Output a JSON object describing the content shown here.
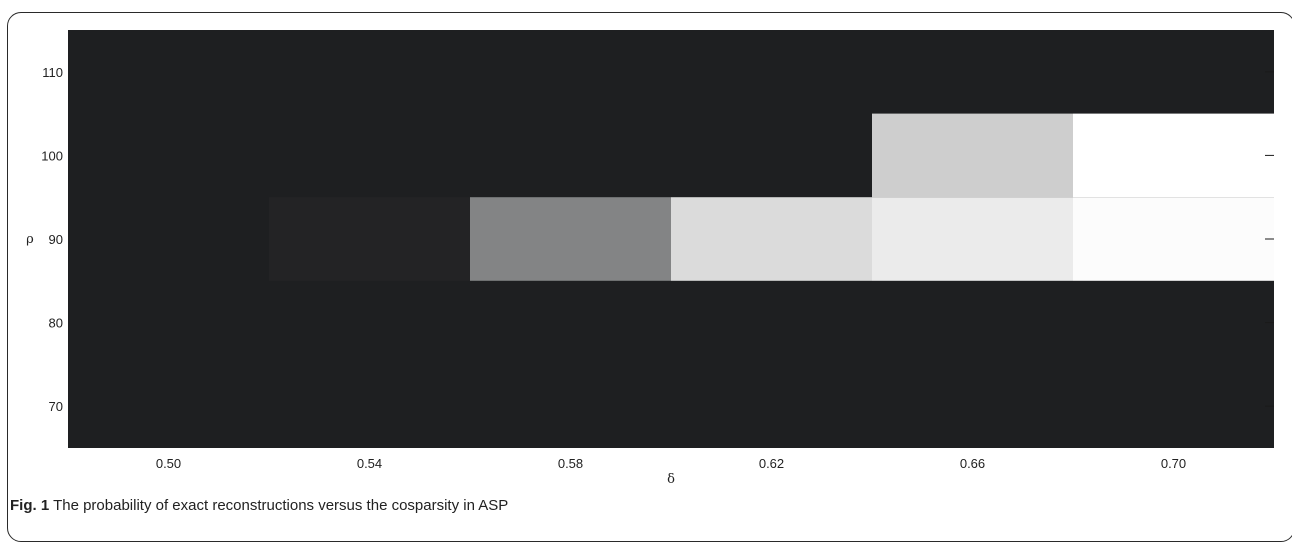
{
  "figure": {
    "label": "Fig. 1",
    "caption": "The probability of exact reconstructions versus the cosparsity in ASP"
  },
  "chart_data": {
    "type": "heatmap",
    "title": "",
    "xlabel": "δ",
    "ylabel": "ρ",
    "x": [
      0.5,
      0.54,
      0.58,
      0.62,
      0.66,
      0.7
    ],
    "x_tick_labels": [
      "0.50",
      "0.54",
      "0.58",
      "0.62",
      "0.66",
      "0.70"
    ],
    "y": [
      110,
      100,
      90,
      80,
      70
    ],
    "y_tick_labels": [
      "110",
      "100",
      "90",
      "80",
      "70"
    ],
    "z": [
      [
        0,
        0,
        0,
        0,
        0,
        0
      ],
      [
        0,
        0,
        0,
        0,
        0.78,
        1.0
      ],
      [
        0,
        0.02,
        0.45,
        0.84,
        0.91,
        0.985
      ],
      [
        0,
        0,
        0,
        0,
        0,
        0
      ],
      [
        0,
        0,
        0,
        0,
        0,
        0
      ]
    ],
    "xlim": [
      0.48,
      0.72
    ],
    "ylim": [
      65,
      115
    ],
    "colormap": "gray",
    "color_low": "#1e1f21",
    "color_high": "#ffffff"
  }
}
